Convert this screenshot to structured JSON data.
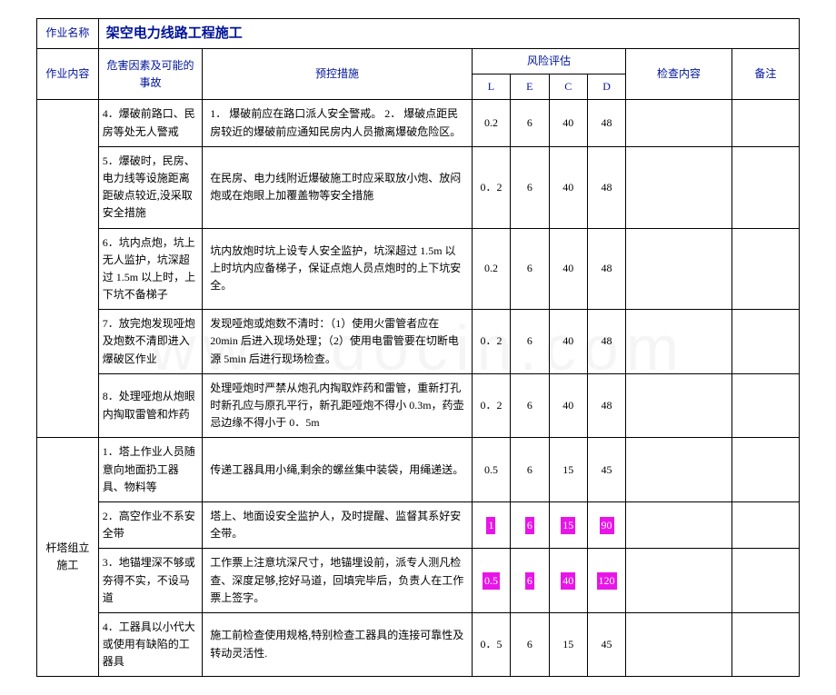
{
  "header": {
    "job_name_label": "作业名称",
    "title": "架空电力线路工程施工",
    "job_content_label": "作业内容",
    "hazard_label": "危害因素及可能的事故",
    "measure_label": "预控措施",
    "risk_label": "风险评估",
    "L": "L",
    "E": "E",
    "C": "C",
    "D": "D",
    "check_label": "检查内容",
    "remark_label": "备注"
  },
  "section1_label": "",
  "section2_label": "杆塔组立施工",
  "rows": [
    {
      "hazard": "4．爆破前路口、民房等处无人警戒",
      "measure": "1． 爆破前应在路口派人安全警戒。\n2． 爆破点距民房较近的爆破前应通知民房内人员撤离爆破危险区。",
      "L": "0.2",
      "E": "6",
      "C": "40",
      "D": "48",
      "hl": false
    },
    {
      "hazard": "5．爆破时，民房、电力线等设施距离距破点较近,没采取安全措施",
      "measure": "    在民房、电力线附近爆破施工时应采取放小炮、放闷炮或在炮眼上加覆盖物等安全措施",
      "L": "0．2",
      "E": "6",
      "C": "40",
      "D": "48",
      "hl": false
    },
    {
      "hazard": "6．坑内点炮，坑上无人监护，坑深超过 1.5m 以上时，上下坑不备梯子",
      "measure": "    坑内放炮时坑上设专人安全监护，坑深超过 1.5m 以上时坑内应备梯子，保证点炮人员点炮时的上下坑安全。",
      "L": "0.2",
      "E": "6",
      "C": "40",
      "D": "48",
      "hl": false
    },
    {
      "hazard": "7．放完炮发现哑炮及炮数不清即进入爆破区作业",
      "measure": "    发现哑炮或炮数不清时：（1）使用火雷管者应在 20min 后进入现场处理；（2）使用电雷管要在切断电源 5min 后进行现场检查。",
      "L": "0．2",
      "E": "6",
      "C": "40",
      "D": "48",
      "hl": false
    },
    {
      "hazard": "8．处理哑炮从炮眼内掏取雷管和炸药",
      "measure": "    处理哑炮时严禁从炮孔内掏取炸药和雷管，重新打孔时新孔应与原孔平行，新孔距哑炮不得小 0.3m，药壶忌边缘不得小于 0．5m",
      "L": "0．2",
      "E": "6",
      "C": "40",
      "D": "48",
      "hl": false
    },
    {
      "hazard": "1．塔上作业人员随意向地面扔工器具、物料等",
      "measure": "    传递工器具用小绳,剩余的螺丝集中装袋，用绳递送。",
      "L": "0.5",
      "E": "6",
      "C": "15",
      "D": "45",
      "hl": false
    },
    {
      "hazard": "2．高空作业不系安全带",
      "measure": "    塔上、地面设安全监护人，及时提醒、监督其系好安全带。",
      "L": "1",
      "E": "6",
      "C": "15",
      "D": "90",
      "hl": true
    },
    {
      "hazard": "3．地锚埋深不够或夯得不实，不设马道",
      "measure": "    工作票上注意坑深尺寸，地锚埋设前，派专人测凡检查、深度足够,挖好马道，回填完毕后，负责人在工作票上签字。",
      "L": "0.5",
      "E": "6",
      "C": "40",
      "D": "120",
      "hl": true
    },
    {
      "hazard": "4．工器具以小代大或使用有缺陷的工器具",
      "measure": "    施工前检查使用规格,特别检查工器具的连接可靠性及转动灵活性.",
      "L": "0．5",
      "E": "6",
      "C": "15",
      "D": "45",
      "hl": false
    }
  ],
  "widths": {
    "c1": 64,
    "c2": 108,
    "c3": 280,
    "c4": 40,
    "c5": 40,
    "c6": 40,
    "c7": 40,
    "c8": 110,
    "c9": 70
  },
  "watermark": "www.docin.com"
}
